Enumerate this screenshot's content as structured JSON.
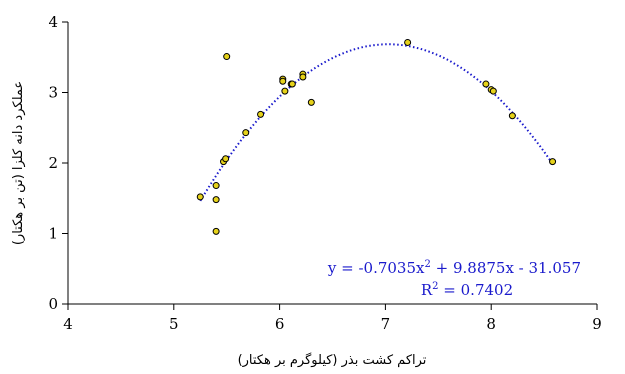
{
  "chart_data": {
    "type": "scatter",
    "xlabel": "تراکم کشت بذر (کیلوگرم بر هکتار)",
    "ylabel": "عملکرد دانه کلزا (تن بر هکتار)",
    "xlim": [
      4,
      9
    ],
    "ylim": [
      0,
      4
    ],
    "x_ticks": [
      "4",
      "5",
      "6",
      "7",
      "8",
      "9"
    ],
    "y_ticks": [
      "0",
      "1",
      "2",
      "3",
      "4"
    ],
    "grid": false,
    "points": [
      {
        "x": 5.25,
        "y": 1.52
      },
      {
        "x": 5.4,
        "y": 1.68
      },
      {
        "x": 5.4,
        "y": 1.48
      },
      {
        "x": 5.4,
        "y": 1.03
      },
      {
        "x": 5.47,
        "y": 2.02
      },
      {
        "x": 5.49,
        "y": 2.06
      },
      {
        "x": 5.5,
        "y": 3.51
      },
      {
        "x": 5.68,
        "y": 2.43
      },
      {
        "x": 5.82,
        "y": 2.69
      },
      {
        "x": 6.03,
        "y": 3.19
      },
      {
        "x": 6.03,
        "y": 3.16
      },
      {
        "x": 6.05,
        "y": 3.02
      },
      {
        "x": 6.11,
        "y": 3.12
      },
      {
        "x": 6.12,
        "y": 3.12
      },
      {
        "x": 6.22,
        "y": 3.26
      },
      {
        "x": 6.22,
        "y": 3.22
      },
      {
        "x": 6.3,
        "y": 2.86
      },
      {
        "x": 7.21,
        "y": 3.71
      },
      {
        "x": 7.95,
        "y": 3.12
      },
      {
        "x": 8.0,
        "y": 3.04
      },
      {
        "x": 8.02,
        "y": 3.02
      },
      {
        "x": 8.2,
        "y": 2.67
      },
      {
        "x": 8.58,
        "y": 2.02
      }
    ],
    "trendline": {
      "type": "polynomial",
      "coefficients": [
        -0.7035,
        9.8875,
        -31.057
      ],
      "x_range": [
        5.25,
        8.58
      ],
      "equation_prefix": "y = -0.7035x",
      "equation_sup": "2",
      "equation_suffix": " + 9.8875x - 31.057",
      "r2_prefix": "R",
      "r2_sup": "2",
      "r2_suffix": " = 0.7402"
    },
    "colors": {
      "marker_fill": "#e6d21a",
      "marker_stroke": "#000000",
      "trendline": "#1a1acc"
    }
  }
}
